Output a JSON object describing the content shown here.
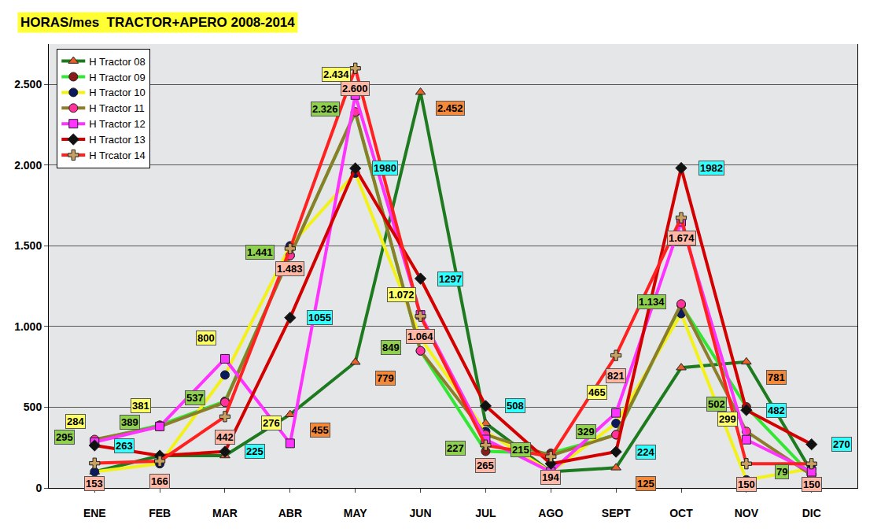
{
  "chart_data": {
    "type": "line",
    "title": "HORAS/mes  TRACTOR+APERO 2008-2014",
    "categories": [
      "ENE",
      "FEB",
      "MAR",
      "ABR",
      "MAY",
      "JUN",
      "JUL",
      "AGO",
      "SEPT",
      "OCT",
      "NOV",
      "DIC"
    ],
    "ylim": [
      0,
      2750
    ],
    "yticks": [
      0,
      500,
      {
        "value": 1000,
        "label": "1.000"
      },
      {
        "value": 1500,
        "label": "1.500"
      },
      {
        "value": 2000,
        "label": "2.000"
      },
      {
        "value": 2500,
        "label": "2.500"
      }
    ],
    "grid": true,
    "legend": "upper left",
    "data_labels": true,
    "series": [
      {
        "name": "H Tractor 08",
        "color": "#1e7a1e",
        "marker": "triangle-up",
        "values": [
          100,
          200,
          200,
          455,
          779,
          2452,
          400,
          100,
          125,
          745,
          781,
          100
        ],
        "value_labels": [
          null,
          null,
          null,
          "455",
          "779",
          "2.452",
          null,
          null,
          "125",
          null,
          "781",
          null
        ]
      },
      {
        "name": "H Tractor 09",
        "color": "#33e633",
        "marker": "circle",
        "values": [
          295,
          389,
          537,
          1441,
          2326,
          849,
          227,
          215,
          329,
          1134,
          502,
          79
        ],
        "value_labels": [
          "295",
          "389",
          "537",
          "1.441",
          "2.326",
          "849",
          "227",
          "215",
          "329",
          "1.134",
          "502",
          "79"
        ]
      },
      {
        "name": "H Tractor 10",
        "color": "#f2f21a",
        "marker": "circle",
        "values": [
          100,
          150,
          700,
          1500,
          1950,
          930,
          350,
          100,
          400,
          1080,
          50,
          120
        ]
      },
      {
        "name": "H Tractor 11",
        "color": "#8b7d2a",
        "marker": "circle",
        "values": [
          300,
          380,
          530,
          1440,
          2330,
          850,
          330,
          200,
          330,
          1140,
          350,
          80
        ]
      },
      {
        "name": "H Tractor 12",
        "color": "#ff33ff",
        "marker": "square",
        "values": [
          284,
          381,
          800,
          276,
          2434,
          1072,
          300,
          100,
          465,
          1650,
          299,
          100
        ],
        "value_labels": [
          "284",
          "381",
          "800",
          "276",
          "2.434",
          "1.072",
          null,
          null,
          "465",
          null,
          "299",
          null
        ]
      },
      {
        "name": "H Tractor 13",
        "color": "#d40000",
        "marker": "diamond",
        "values": [
          263,
          200,
          225,
          1055,
          1980,
          1297,
          508,
          150,
          224,
          1982,
          482,
          270
        ],
        "value_labels": [
          "263",
          null,
          "225",
          "1055",
          "1980",
          "1297",
          "508",
          null,
          "224",
          "1982",
          "482",
          "270"
        ]
      },
      {
        "name": "H Trcator 14",
        "color": "#ff2020",
        "marker": "cross",
        "values": [
          153,
          166,
          442,
          1483,
          2600,
          1064,
          265,
          194,
          821,
          1674,
          150,
          150
        ],
        "value_labels": [
          "153",
          "166",
          "442",
          "1.483",
          "2.600",
          "1.064",
          "265",
          "194",
          "821",
          "1.674",
          "150",
          "150"
        ]
      }
    ]
  }
}
